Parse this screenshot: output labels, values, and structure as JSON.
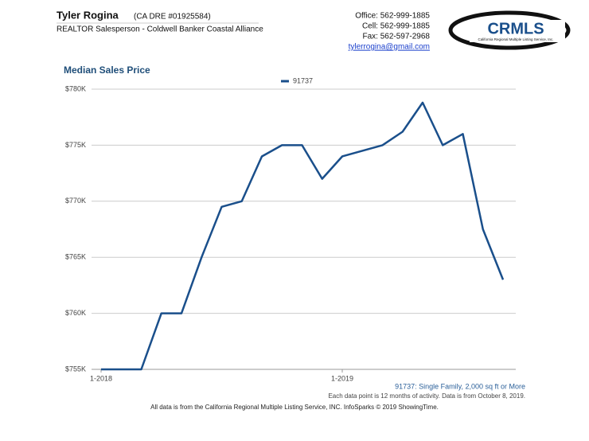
{
  "header": {
    "name": "Tyler Rogina",
    "license": "(CA DRE #01925584)",
    "title": "REALTOR Salesperson - Coldwell Banker Coastal Alliance",
    "office": "Office: 562-999-1885",
    "cell": "Cell: 562-999-1885",
    "fax": "Fax: 562-597-2968",
    "email": "tylerrogina@gmail.com",
    "logo_text": "CRMLS",
    "logo_subtitle": "California Regional Multiple Listing Service, Inc."
  },
  "chart_data": {
    "type": "line",
    "title": "Median Sales Price",
    "categories": [
      "1-2018",
      null,
      null,
      null,
      null,
      null,
      null,
      null,
      null,
      null,
      null,
      null,
      "1-2019",
      null,
      null,
      null,
      null,
      null,
      null,
      null,
      null
    ],
    "series": [
      {
        "name": "91737",
        "color": "#1a4f8b",
        "values": [
          755000,
          755000,
          755000,
          760000,
          760000,
          765000,
          769500,
          770000,
          774000,
          775000,
          775000,
          772000,
          774000,
          774500,
          775000,
          776200,
          778800,
          775000,
          776000,
          767500,
          763000
        ]
      }
    ],
    "ylim": [
      755000,
      780000
    ],
    "yticks": [
      {
        "value": 755000,
        "label": "$755K"
      },
      {
        "value": 760000,
        "label": "$760K"
      },
      {
        "value": 765000,
        "label": "$765K"
      },
      {
        "value": 770000,
        "label": "$770K"
      },
      {
        "value": 775000,
        "label": "$775K"
      },
      {
        "value": 780000,
        "label": "$780K"
      }
    ],
    "grid": true,
    "legend": "top"
  },
  "footer": {
    "series_note": "91737: Single Family, 2,000 sq ft or More",
    "activity_note": "Each data point is 12 months of activity. Data is from October 8, 2019.",
    "source": "All data is from the California Regional Multiple Listing Service, INC. InfoSparks © 2019 ShowingTime."
  }
}
